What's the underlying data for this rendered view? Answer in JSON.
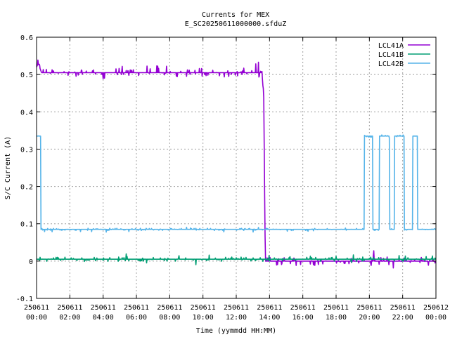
{
  "chart_data": {
    "type": "line",
    "title": "Currents for MEX",
    "subtitle": "E_SC20250611000000.sfduZ",
    "xlabel": "Time (yymmdd HH:MM)",
    "ylabel": "S/C Current (A)",
    "xlim": [
      0,
      24
    ],
    "ylim": [
      -0.1,
      0.6
    ],
    "grid": true,
    "legend_position": "top-right",
    "y_ticks": [
      {
        "value": -0.1,
        "label": "-0.1"
      },
      {
        "value": 0,
        "label": "0"
      },
      {
        "value": 0.1,
        "label": "0.1"
      },
      {
        "value": 0.2,
        "label": "0.2"
      },
      {
        "value": 0.3,
        "label": "0.3"
      },
      {
        "value": 0.4,
        "label": "0.4"
      },
      {
        "value": 0.5,
        "label": "0.5"
      },
      {
        "value": 0.6,
        "label": "0.6"
      }
    ],
    "x_ticks": [
      {
        "value": 0,
        "date": "250611",
        "time": "00:00"
      },
      {
        "value": 2,
        "date": "250611",
        "time": "02:00"
      },
      {
        "value": 4,
        "date": "250611",
        "time": "04:00"
      },
      {
        "value": 6,
        "date": "250611",
        "time": "06:00"
      },
      {
        "value": 8,
        "date": "250611",
        "time": "08:00"
      },
      {
        "value": 10,
        "date": "250611",
        "time": "10:00"
      },
      {
        "value": 12,
        "date": "250611",
        "time": "12:00"
      },
      {
        "value": 14,
        "date": "250611",
        "time": "14:00"
      },
      {
        "value": 16,
        "date": "250611",
        "time": "16:00"
      },
      {
        "value": 18,
        "date": "250611",
        "time": "18:00"
      },
      {
        "value": 20,
        "date": "250611",
        "time": "20:00"
      },
      {
        "value": 22,
        "date": "250611",
        "time": "22:00"
      },
      {
        "value": 24,
        "date": "250612",
        "time": "00:00"
      }
    ],
    "series": [
      {
        "name": "LCL41A",
        "color": "#9400d3",
        "noise": 0.012,
        "points": [
          [
            0,
            0.52
          ],
          [
            0.1,
            0.53
          ],
          [
            0.3,
            0.505
          ],
          [
            1,
            0.505
          ],
          [
            3,
            0.505
          ],
          [
            5,
            0.505
          ],
          [
            7,
            0.505
          ],
          [
            9,
            0.505
          ],
          [
            11,
            0.505
          ],
          [
            12.5,
            0.505
          ],
          [
            13.55,
            0.505
          ],
          [
            13.6,
            0.47
          ],
          [
            13.65,
            0.455
          ],
          [
            13.7,
            0.2
          ],
          [
            13.75,
            0.0
          ],
          [
            24,
            0.0
          ]
        ]
      },
      {
        "name": "LCL41B",
        "color": "#009e73",
        "noise": 0.006,
        "points": [
          [
            0,
            0.005
          ],
          [
            24,
            0.005
          ]
        ]
      },
      {
        "name": "LCL42B",
        "color": "#56b4e9",
        "noise": 0.003,
        "points": [
          [
            0,
            0.335
          ],
          [
            0.25,
            0.335
          ],
          [
            0.25,
            0.085
          ],
          [
            19.7,
            0.085
          ],
          [
            19.7,
            0.335
          ],
          [
            20.2,
            0.335
          ],
          [
            20.2,
            0.085
          ],
          [
            20.6,
            0.085
          ],
          [
            20.6,
            0.335
          ],
          [
            21.2,
            0.335
          ],
          [
            21.2,
            0.085
          ],
          [
            21.5,
            0.085
          ],
          [
            21.5,
            0.335
          ],
          [
            22.1,
            0.335
          ],
          [
            22.1,
            0.085
          ],
          [
            22.6,
            0.085
          ],
          [
            22.6,
            0.335
          ],
          [
            22.9,
            0.335
          ],
          [
            22.9,
            0.085
          ],
          [
            24,
            0.085
          ]
        ]
      }
    ]
  }
}
